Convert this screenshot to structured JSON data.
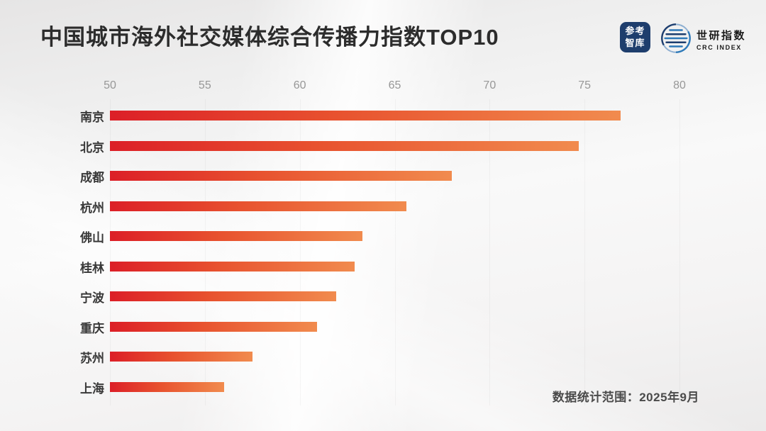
{
  "header": {
    "title": "中国城市海外社交媒体综合传播力指数TOP10",
    "cankao_logo": {
      "line1": "参考",
      "line2": "智库",
      "bg_color": "#1e3e6d"
    },
    "crc_logo": {
      "cn": "世研指数",
      "en": "CRC INDEX",
      "navy": "#1d3e6f",
      "blue": "#2e79b8"
    }
  },
  "footer": {
    "note": "数据统计范围：2025年9月"
  },
  "chart_data": {
    "type": "bar",
    "orientation": "horizontal",
    "title": "中国城市海外社交媒体综合传播力指数TOP10",
    "categories": [
      "南京",
      "北京",
      "成都",
      "杭州",
      "佛山",
      "桂林",
      "宁波",
      "重庆",
      "苏州",
      "上海"
    ],
    "values": [
      76.9,
      74.7,
      68.0,
      65.6,
      63.3,
      62.9,
      61.9,
      60.9,
      57.5,
      56.0
    ],
    "xlabel": "",
    "ylabel": "",
    "xlim": [
      50,
      80
    ],
    "xticks": [
      50,
      55,
      60,
      65,
      70,
      75,
      80
    ],
    "grid": "vertical-faint",
    "legend": "none",
    "bar_color_start": "#dc1f27",
    "bar_color_mid": "#e8532f",
    "bar_color_end": "#f18b4e"
  }
}
